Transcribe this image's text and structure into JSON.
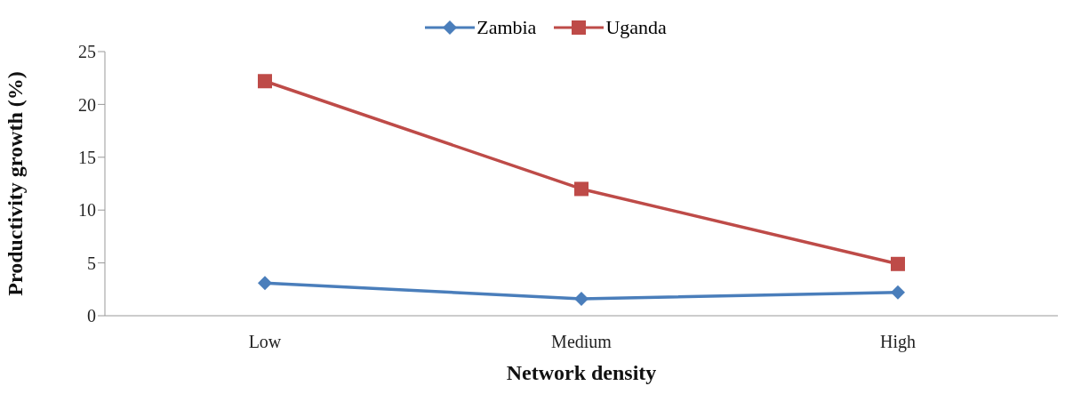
{
  "chart_data": {
    "type": "line",
    "xlabel": "Network density",
    "ylabel": "Productivity growth (%)",
    "categories": [
      "Low",
      "Medium",
      "High"
    ],
    "series": [
      {
        "name": "Zambia",
        "color": "#4a7ebb",
        "marker": "diamond",
        "values": [
          3.1,
          1.6,
          2.2
        ]
      },
      {
        "name": "Uganda",
        "color": "#be4b48",
        "marker": "square",
        "values": [
          22.2,
          12.0,
          4.9
        ]
      }
    ],
    "ylim": [
      0,
      25
    ],
    "yticks": [
      0,
      5,
      10,
      15,
      20,
      25
    ],
    "grid": false,
    "legend": "top"
  }
}
